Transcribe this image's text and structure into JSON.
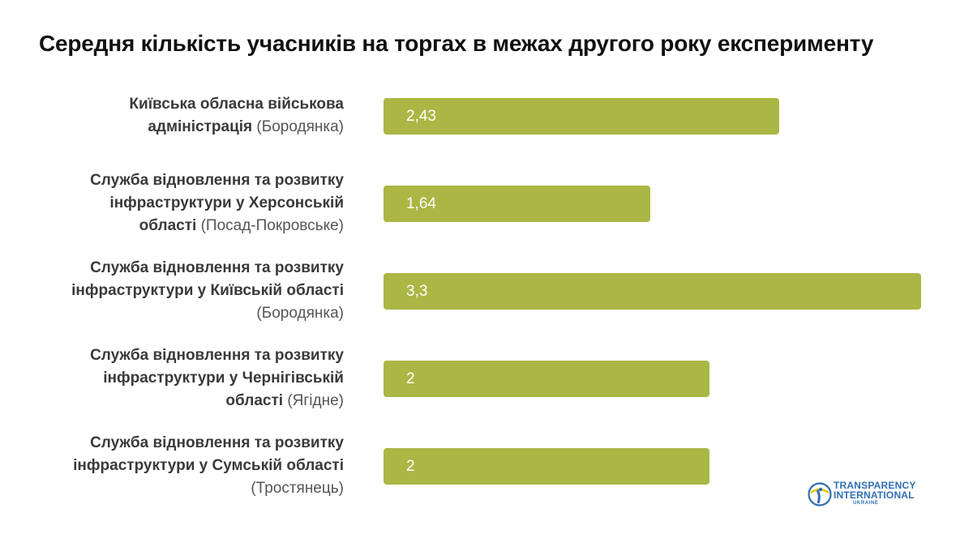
{
  "title": "Середня кількість учасників на торгах в межах другого року експерименту",
  "chart_data": {
    "type": "bar",
    "orientation": "horizontal",
    "title": "Середня кількість учасників на торгах в межах другого року експерименту",
    "categories": [
      {
        "bold": "Київська обласна військова адміністрація",
        "light": "(Бородянка)",
        "lines": [
          [
            {
              "t": "Київська обласна військова",
              "b": true
            }
          ],
          [
            {
              "t": "адміністрація",
              "b": true
            },
            {
              "t": " (Бородянка)",
              "b": false
            }
          ]
        ],
        "value": 2.43,
        "value_label": "2,43"
      },
      {
        "bold": "Служба відновлення та розвитку інфраструктури у Херсонській області",
        "light": "(Посад-Покровське)",
        "lines": [
          [
            {
              "t": "Служба відновлення та розвитку",
              "b": true
            }
          ],
          [
            {
              "t": "інфраструктури у Херсонській",
              "b": true
            }
          ],
          [
            {
              "t": "області",
              "b": true
            },
            {
              "t": " (Посад-Покровське)",
              "b": false
            }
          ]
        ],
        "value": 1.64,
        "value_label": "1,64"
      },
      {
        "bold": "Служба відновлення та розвитку інфраструктури у Київській області",
        "light": "(Бородянка)",
        "lines": [
          [
            {
              "t": "Служба відновлення та розвитку",
              "b": true
            }
          ],
          [
            {
              "t": "інфраструктури у Київській області",
              "b": true
            }
          ],
          [
            {
              "t": "(Бородянка)",
              "b": false
            }
          ]
        ],
        "value": 3.3,
        "value_label": "3,3"
      },
      {
        "bold": "Служба відновлення та розвитку інфраструктури у Чернігівській області",
        "light": "(Ягідне)",
        "lines": [
          [
            {
              "t": "Служба відновлення та розвитку",
              "b": true
            }
          ],
          [
            {
              "t": "інфраструктури у Чернігівській",
              "b": true
            }
          ],
          [
            {
              "t": "області",
              "b": true
            },
            {
              "t": " (Ягідне)",
              "b": false
            }
          ]
        ],
        "value": 2,
        "value_label": "2"
      },
      {
        "bold": "Служба відновлення та розвитку інфраструктури у Сумській області",
        "light": "(Тростянець)",
        "lines": [
          [
            {
              "t": "Служба відновлення та розвитку",
              "b": true
            }
          ],
          [
            {
              "t": "інфраструктури у Сумській області",
              "b": true
            }
          ],
          [
            {
              "t": "(Тростянець)",
              "b": false
            }
          ]
        ],
        "value": 2,
        "value_label": "2"
      }
    ],
    "values": [
      2.43,
      1.64,
      3.3,
      2,
      2
    ],
    "bar_color": "#aab744",
    "xlim": [
      0,
      3.3
    ],
    "grid": false,
    "legend": "none"
  },
  "logo": {
    "line1": "TRANSPARENCY",
    "line2": "INTERNATIONAL",
    "line3": "UKRAINE",
    "color_blue": "#2f6fb3",
    "color_yellow": "#f2c200"
  }
}
